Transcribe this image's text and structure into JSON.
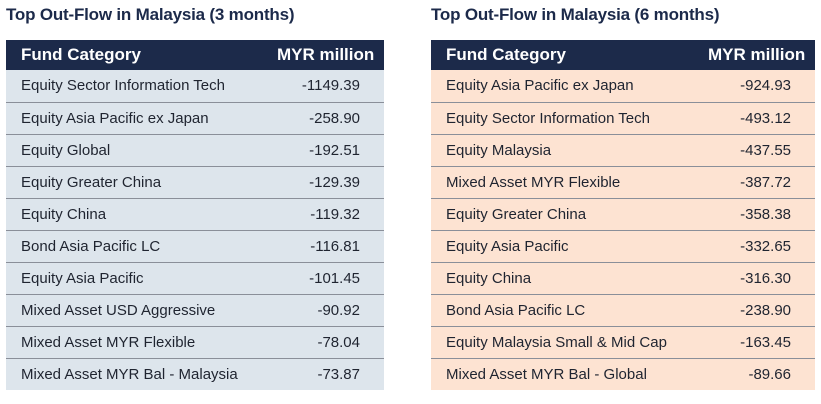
{
  "left": {
    "title": "Top Out-Flow in Malaysia (3 months)",
    "headers": {
      "category": "Fund Category",
      "value": "MYR million"
    },
    "row_color": "#dde5ec",
    "rows": [
      {
        "category": "Equity Sector Information Tech",
        "value": "-1149.39"
      },
      {
        "category": "Equity Asia Pacific ex Japan",
        "value": "-258.90"
      },
      {
        "category": "Equity Global",
        "value": "-192.51"
      },
      {
        "category": "Equity Greater China",
        "value": "-129.39"
      },
      {
        "category": "Equity China",
        "value": "-119.32"
      },
      {
        "category": "Bond Asia Pacific LC",
        "value": "-116.81"
      },
      {
        "category": "Equity Asia Pacific",
        "value": "-101.45"
      },
      {
        "category": "Mixed Asset USD Aggressive",
        "value": "-90.92"
      },
      {
        "category": "Mixed Asset MYR Flexible",
        "value": "-78.04"
      },
      {
        "category": "Mixed Asset MYR Bal - Malaysia",
        "value": "-73.87"
      }
    ]
  },
  "right": {
    "title": "Top Out-Flow in Malaysia (6 months)",
    "headers": {
      "category": "Fund Category",
      "value": "MYR million"
    },
    "row_color": "#fde3d2",
    "rows": [
      {
        "category": "Equity Asia Pacific ex Japan",
        "value": "-924.93"
      },
      {
        "category": "Equity Sector Information Tech",
        "value": "-493.12"
      },
      {
        "category": "Equity Malaysia",
        "value": "-437.55"
      },
      {
        "category": "Mixed Asset MYR Flexible",
        "value": "-387.72"
      },
      {
        "category": "Equity Greater China",
        "value": "-358.38"
      },
      {
        "category": "Equity Asia Pacific",
        "value": "-332.65"
      },
      {
        "category": "Equity China",
        "value": "-316.30"
      },
      {
        "category": "Bond Asia Pacific LC",
        "value": "-238.90"
      },
      {
        "category": "Equity Malaysia Small & Mid Cap",
        "value": "-163.45"
      },
      {
        "category": "Mixed Asset MYR Bal - Global",
        "value": "-89.66"
      }
    ]
  },
  "header_color": "#1c2a4a"
}
